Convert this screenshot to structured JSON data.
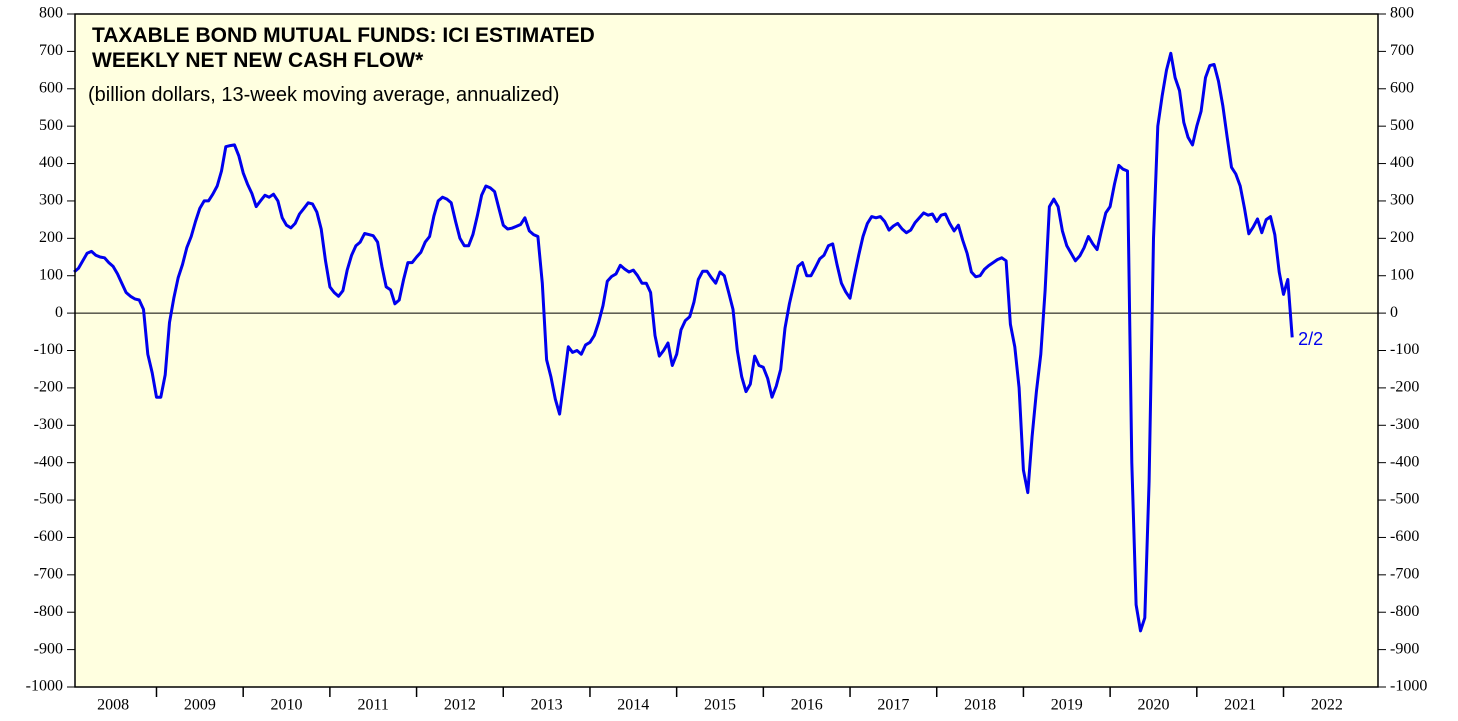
{
  "chart_data": {
    "type": "line",
    "title": [
      "TAXABLE BOND MUTUAL FUNDS: ICI ESTIMATED",
      "WEEKLY NET NEW CASH FLOW*"
    ],
    "subtitle": "(billion dollars, 13-week moving average, annualized)",
    "annotation": "2/2",
    "xlim": [
      2008.06,
      2023.09
    ],
    "xticks": [
      {
        "value": 2008.5,
        "label": "2008"
      },
      {
        "value": 2009.5,
        "label": "2009"
      },
      {
        "value": 2010.5,
        "label": "2010"
      },
      {
        "value": 2011.5,
        "label": "2011"
      },
      {
        "value": 2012.5,
        "label": "2012"
      },
      {
        "value": 2013.5,
        "label": "2013"
      },
      {
        "value": 2014.5,
        "label": "2014"
      },
      {
        "value": 2015.5,
        "label": "2015"
      },
      {
        "value": 2016.5,
        "label": "2016"
      },
      {
        "value": 2017.5,
        "label": "2017"
      },
      {
        "value": 2018.5,
        "label": "2018"
      },
      {
        "value": 2019.5,
        "label": "2019"
      },
      {
        "value": 2020.5,
        "label": "2020"
      },
      {
        "value": 2021.5,
        "label": "2021"
      },
      {
        "value": 2022.5,
        "label": "2022"
      }
    ],
    "ylim": [
      -1000,
      800
    ],
    "yticks": [
      -1000,
      -900,
      -800,
      -700,
      -600,
      -500,
      -400,
      -300,
      -200,
      -100,
      0,
      100,
      200,
      300,
      400,
      500,
      600,
      700,
      800
    ],
    "background": "#ffffe0",
    "x": [
      2008.05,
      2008.1,
      2008.15,
      2008.2,
      2008.25,
      2008.3,
      2008.35,
      2008.4,
      2008.45,
      2008.5,
      2008.55,
      2008.6,
      2008.65,
      2008.7,
      2008.75,
      2008.8,
      2008.85,
      2008.9,
      2008.95,
      2009,
      2009.05,
      2009.1,
      2009.15,
      2009.2,
      2009.25,
      2009.3,
      2009.35,
      2009.4,
      2009.45,
      2009.5,
      2009.55,
      2009.6,
      2009.65,
      2009.7,
      2009.75,
      2009.8,
      2009.85,
      2009.9,
      2009.95,
      2010,
      2010.05,
      2010.1,
      2010.15,
      2010.2,
      2010.25,
      2010.3,
      2010.35,
      2010.4,
      2010.45,
      2010.5,
      2010.55,
      2010.6,
      2010.65,
      2010.7,
      2010.75,
      2010.8,
      2010.85,
      2010.9,
      2010.95,
      2011,
      2011.05,
      2011.1,
      2011.15,
      2011.2,
      2011.25,
      2011.3,
      2011.35,
      2011.4,
      2011.45,
      2011.5,
      2011.55,
      2011.6,
      2011.65,
      2011.7,
      2011.75,
      2011.8,
      2011.85,
      2011.9,
      2011.95,
      2012,
      2012.05,
      2012.1,
      2012.15,
      2012.2,
      2012.25,
      2012.3,
      2012.35,
      2012.4,
      2012.45,
      2012.5,
      2012.55,
      2012.6,
      2012.65,
      2012.7,
      2012.75,
      2012.8,
      2012.85,
      2012.9,
      2012.95,
      2013,
      2013.05,
      2013.1,
      2013.15,
      2013.2,
      2013.25,
      2013.3,
      2013.35,
      2013.4,
      2013.45,
      2013.5,
      2013.55,
      2013.6,
      2013.65,
      2013.7,
      2013.75,
      2013.8,
      2013.85,
      2013.9,
      2013.95,
      2014,
      2014.05,
      2014.1,
      2014.15,
      2014.2,
      2014.25,
      2014.3,
      2014.35,
      2014.4,
      2014.45,
      2014.5,
      2014.55,
      2014.6,
      2014.65,
      2014.7,
      2014.75,
      2014.8,
      2014.85,
      2014.9,
      2014.95,
      2015,
      2015.05,
      2015.1,
      2015.15,
      2015.2,
      2015.25,
      2015.3,
      2015.35,
      2015.4,
      2015.45,
      2015.5,
      2015.55,
      2015.6,
      2015.65,
      2015.7,
      2015.75,
      2015.8,
      2015.85,
      2015.9,
      2015.95,
      2016,
      2016.05,
      2016.1,
      2016.15,
      2016.2,
      2016.25,
      2016.3,
      2016.35,
      2016.4,
      2016.45,
      2016.5,
      2016.55,
      2016.6,
      2016.65,
      2016.7,
      2016.75,
      2016.8,
      2016.85,
      2016.9,
      2016.95,
      2017,
      2017.05,
      2017.1,
      2017.15,
      2017.2,
      2017.25,
      2017.3,
      2017.35,
      2017.4,
      2017.45,
      2017.5,
      2017.55,
      2017.6,
      2017.65,
      2017.7,
      2017.75,
      2017.8,
      2017.85,
      2017.9,
      2017.95,
      2018,
      2018.05,
      2018.1,
      2018.15,
      2018.2,
      2018.25,
      2018.3,
      2018.35,
      2018.4,
      2018.45,
      2018.5,
      2018.55,
      2018.6,
      2018.65,
      2018.7,
      2018.75,
      2018.8,
      2018.85,
      2018.9,
      2018.95,
      2019,
      2019.05,
      2019.1,
      2019.15,
      2019.2,
      2019.25,
      2019.3,
      2019.35,
      2019.4,
      2019.45,
      2019.5,
      2019.55,
      2019.6,
      2019.65,
      2019.7,
      2019.75,
      2019.8,
      2019.85,
      2019.9,
      2019.95,
      2020,
      2020.05,
      2020.1,
      2020.15,
      2020.2,
      2020.25,
      2020.3,
      2020.35,
      2020.4,
      2020.45,
      2020.5,
      2020.55,
      2020.6,
      2020.65,
      2020.7,
      2020.75,
      2020.8,
      2020.85,
      2020.9,
      2020.95,
      2021,
      2021.05,
      2021.1,
      2021.15,
      2021.2,
      2021.25,
      2021.3,
      2021.35,
      2021.4,
      2021.45,
      2021.5,
      2021.55,
      2021.6,
      2021.65,
      2021.7,
      2021.75,
      2021.8,
      2021.85,
      2021.9,
      2021.95,
      2022,
      2022.05,
      2022.1
    ],
    "series": [
      {
        "color": "#0000ee",
        "values": [
          110,
          120,
          140,
          160,
          165,
          155,
          150,
          148,
          135,
          125,
          105,
          80,
          55,
          45,
          38,
          35,
          10,
          -110,
          -160,
          -225,
          -225,
          -165,
          -25,
          40,
          95,
          130,
          175,
          205,
          245,
          280,
          300,
          300,
          318,
          340,
          380,
          445,
          448,
          450,
          420,
          375,
          345,
          320,
          285,
          300,
          315,
          310,
          318,
          300,
          255,
          235,
          228,
          240,
          265,
          280,
          295,
          292,
          270,
          225,
          140,
          70,
          55,
          45,
          60,
          115,
          155,
          180,
          190,
          213,
          210,
          207,
          190,
          125,
          70,
          62,
          25,
          35,
          90,
          135,
          135,
          150,
          163,
          190,
          205,
          260,
          300,
          310,
          305,
          295,
          245,
          200,
          180,
          180,
          210,
          260,
          315,
          340,
          335,
          325,
          280,
          235,
          225,
          227,
          232,
          237,
          255,
          220,
          210,
          205,
          80,
          -125,
          -170,
          -230,
          -270,
          -180,
          -90,
          -105,
          -100,
          -110,
          -85,
          -78,
          -60,
          -25,
          20,
          85,
          98,
          105,
          128,
          118,
          110,
          115,
          100,
          80,
          80,
          55,
          -60,
          -115,
          -100,
          -80,
          -140,
          -110,
          -45,
          -20,
          -10,
          30,
          90,
          112,
          112,
          95,
          80,
          110,
          100,
          55,
          10,
          -100,
          -170,
          -210,
          -190,
          -115,
          -140,
          -145,
          -175,
          -225,
          -195,
          -150,
          -40,
          25,
          75,
          125,
          135,
          100,
          100,
          122,
          145,
          155,
          180,
          185,
          130,
          80,
          57,
          40,
          100,
          155,
          205,
          240,
          258,
          255,
          258,
          245,
          222,
          233,
          240,
          225,
          215,
          222,
          242,
          255,
          268,
          262,
          265,
          245,
          262,
          265,
          240,
          220,
          235,
          195,
          160,
          110,
          97,
          100,
          117,
          127,
          135,
          143,
          148,
          140,
          -30,
          -90,
          -200,
          -420,
          -480,
          -330,
          -210,
          -110,
          60,
          285,
          305,
          285,
          220,
          180,
          160,
          140,
          153,
          175,
          205,
          185,
          170,
          220,
          268,
          285,
          345,
          395,
          385,
          380,
          -400,
          -780,
          -850,
          -815,
          -450,
          200,
          500,
          580,
          650,
          695,
          630,
          595,
          510,
          470,
          450,
          500,
          540,
          630,
          662,
          665,
          620,
          555,
          470,
          390,
          372,
          340,
          280,
          212,
          230,
          252,
          215,
          250,
          258,
          210,
          110,
          50,
          90,
          -65
        ]
      }
    ]
  }
}
